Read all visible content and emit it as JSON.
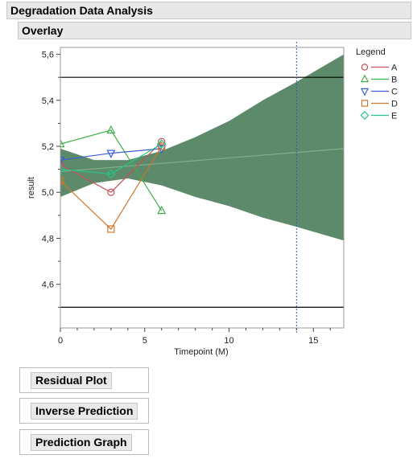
{
  "header": {
    "title": "Degradation Data Analysis",
    "subtitle": "Overlay"
  },
  "buttons": {
    "residual": "Residual Plot",
    "inverse": "Inverse Prediction",
    "prediction": "Prediction Graph"
  },
  "chart_data": {
    "type": "line",
    "xlabel": "Timepoint (M)",
    "ylabel": "result",
    "xlim": [
      0,
      16.8
    ],
    "ylim": [
      4.41,
      5.63
    ],
    "x_ticks": [
      0,
      5,
      10,
      15
    ],
    "x_tick_labels": [
      "0",
      "5",
      "10",
      "15"
    ],
    "y_ticks": [
      4.6,
      4.8,
      5.0,
      5.2,
      5.4,
      5.6
    ],
    "y_tick_labels": [
      "4,6",
      "4,8",
      "5,0",
      "5,2",
      "5,4",
      "5,6"
    ],
    "grid": false,
    "legend_title": "Legend",
    "legend_position": "right",
    "series": [
      {
        "name": "A",
        "marker": "circle",
        "color": "#c7505a",
        "x": [
          0,
          3,
          6
        ],
        "y": [
          5.12,
          5.0,
          5.22
        ]
      },
      {
        "name": "B",
        "marker": "triangle-up",
        "color": "#3fae49",
        "x": [
          0,
          3,
          6
        ],
        "y": [
          5.21,
          5.27,
          4.92
        ]
      },
      {
        "name": "C",
        "marker": "triangle-down",
        "color": "#3a5ed8",
        "x": [
          0,
          3,
          6
        ],
        "y": [
          5.14,
          5.17,
          5.19
        ]
      },
      {
        "name": "D",
        "marker": "square",
        "color": "#d1762a",
        "x": [
          0,
          3,
          6
        ],
        "y": [
          5.05,
          4.84,
          5.2
        ]
      },
      {
        "name": "E",
        "marker": "diamond",
        "color": "#29c48a",
        "x": [
          0,
          3,
          6
        ],
        "y": [
          5.1,
          5.08,
          5.21
        ]
      }
    ],
    "fit": {
      "color": "#5c8a6b",
      "x": [
        0,
        16.8
      ],
      "y": [
        5.09,
        5.19
      ],
      "confidence_band": {
        "x": [
          0,
          2,
          4,
          6,
          8,
          10,
          12,
          14,
          16.8
        ],
        "lower": [
          4.98,
          5.04,
          5.06,
          5.03,
          4.98,
          4.94,
          4.89,
          4.85,
          4.79
        ],
        "upper": [
          5.19,
          5.14,
          5.14,
          5.18,
          5.24,
          5.31,
          5.4,
          5.48,
          5.6
        ]
      }
    },
    "spec_limits": {
      "lower": 4.5,
      "upper": 5.5,
      "color": "#000000"
    },
    "reference_x": 14,
    "reference_color": "#2a56c6"
  }
}
